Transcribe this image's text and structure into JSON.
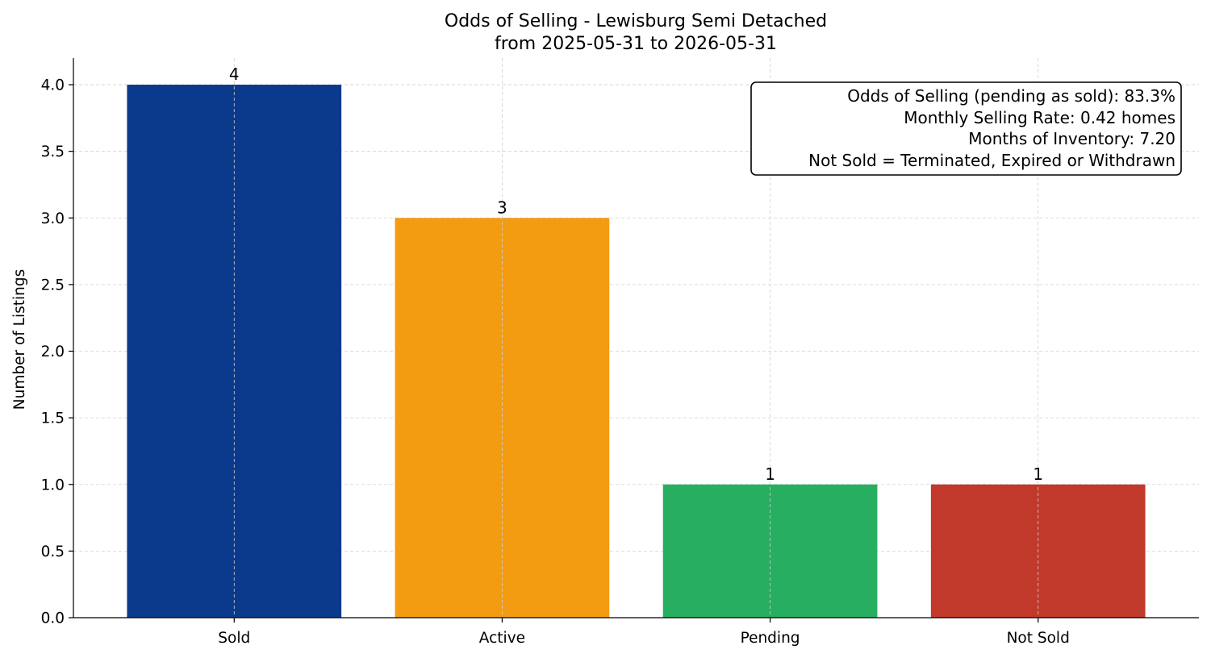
{
  "chart_data": {
    "type": "bar",
    "title": "Odds of Selling - Lewisburg Semi Detached",
    "subtitle": "from 2025-05-31 to 2026-05-31",
    "xlabel": "",
    "ylabel": "Number of Listings",
    "categories": [
      "Sold",
      "Active",
      "Pending",
      "Not Sold"
    ],
    "values": [
      4,
      3,
      1,
      1
    ],
    "data_labels": [
      "4",
      "3",
      "1",
      "1"
    ],
    "colors": [
      "#0b3a8c",
      "#f39c12",
      "#27ae60",
      "#c0392b"
    ],
    "ylim": [
      0,
      4.2
    ],
    "yticks": [
      0.0,
      0.5,
      1.0,
      1.5,
      2.0,
      2.5,
      3.0,
      3.5,
      4.0
    ],
    "ytick_labels": [
      "0.0",
      "0.5",
      "1.0",
      "1.5",
      "2.0",
      "2.5",
      "3.0",
      "3.5",
      "4.0"
    ],
    "grid": true,
    "annotation_lines": [
      "Odds of Selling (pending as sold): 83.3%",
      "Monthly Selling Rate: 0.42 homes",
      "Months of Inventory: 7.20",
      "Not Sold = Terminated, Expired or Withdrawn"
    ]
  }
}
